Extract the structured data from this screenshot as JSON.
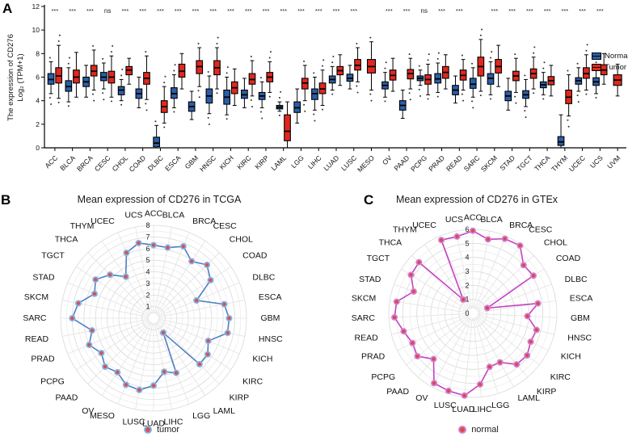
{
  "figure_labels": {
    "a": "A",
    "b": "B",
    "c": "C"
  },
  "panel_a": {
    "ylabel_line1": "The expression of CD276",
    "ylabel_line2": "Log₂ (TPM+1)",
    "legend_normal": "Normal",
    "legend_tumor": "Tumor"
  },
  "panel_b": {
    "title": "Mean expression of CD276 in TCGA",
    "legend": "tumor"
  },
  "panel_c": {
    "title": "Mean expression of CD276 in GTEx",
    "legend": "normal"
  },
  "chart_data": [
    {
      "type": "grouped_boxplot",
      "panel": "A",
      "title": "",
      "ylabel": "The expression of CD276 Log₂ (TPM+1)",
      "ylim": [
        0,
        12
      ],
      "y_ticks": [
        0,
        2,
        4,
        6,
        8,
        10,
        12
      ],
      "grid": false,
      "legend_position": "right",
      "colors": {
        "normal": "#2a5fa8",
        "tumor": "#e02820"
      },
      "categories": [
        "ACC",
        "BLCA",
        "BRCA",
        "CESC",
        "CHOL",
        "COAD",
        "DLBC",
        "ESCA",
        "GBM",
        "HNSC",
        "KICH",
        "KIRC",
        "KIRP",
        "LAML",
        "LGG",
        "LIHC",
        "LUAD",
        "LUSC",
        "MESO",
        "OV",
        "PAAD",
        "PCPG",
        "PRAD",
        "READ",
        "SARC",
        "SKCM",
        "STAD",
        "TGCT",
        "THCA",
        "THYM",
        "UCEC",
        "UCS",
        "UVM"
      ],
      "significance": [
        "***",
        "***",
        "***",
        "ns",
        "***",
        "***",
        "***",
        "***",
        "***",
        "***",
        "***",
        "***",
        "***",
        "***",
        "***",
        "***",
        "***",
        "***",
        "",
        "***",
        "***",
        "ns",
        "***",
        "***",
        "",
        "***",
        "***",
        "***",
        "***",
        "***",
        "***",
        "***",
        ""
      ],
      "series": [
        {
          "name": "Normal",
          "boxes": [
            [
              4.6,
              5.4,
              5.8,
              6.3,
              7.3
            ],
            [
              3.9,
              4.8,
              5.2,
              5.7,
              6.8
            ],
            [
              4.3,
              5.2,
              5.6,
              6.0,
              7.0
            ],
            [
              5.0,
              5.7,
              6.0,
              6.4,
              7.2
            ],
            [
              4.0,
              4.5,
              4.9,
              5.2,
              5.8
            ],
            [
              3.4,
              4.2,
              4.6,
              5.0,
              6.0
            ],
            [
              0.0,
              0.1,
              0.4,
              0.9,
              1.9
            ],
            [
              3.4,
              4.2,
              4.6,
              5.1,
              6.2
            ],
            [
              2.4,
              3.1,
              3.5,
              3.9,
              4.8
            ],
            [
              2.9,
              3.8,
              4.4,
              5.0,
              6.1
            ],
            [
              2.8,
              3.7,
              4.3,
              4.9,
              6.0
            ],
            [
              3.4,
              4.2,
              4.5,
              4.9,
              5.9
            ],
            [
              3.4,
              4.1,
              4.4,
              4.7,
              5.6
            ],
            [
              3.1,
              3.3,
              3.45,
              3.6,
              3.9
            ],
            [
              2.1,
              3.0,
              3.4,
              3.9,
              5.0
            ],
            [
              3.2,
              4.1,
              4.6,
              5.0,
              6.0
            ],
            [
              4.9,
              5.5,
              5.8,
              6.1,
              6.9
            ],
            [
              5.0,
              5.65,
              5.9,
              6.25,
              7.0
            ],
            null,
            [
              4.3,
              5.0,
              5.3,
              5.6,
              6.4
            ],
            [
              2.5,
              3.2,
              3.6,
              4.0,
              4.9
            ],
            [
              5.3,
              5.7,
              5.9,
              6.1,
              6.6
            ],
            [
              4.7,
              5.5,
              5.85,
              6.3,
              7.2
            ],
            [
              3.8,
              4.5,
              4.9,
              5.3,
              6.1
            ],
            [
              4.3,
              5.05,
              5.4,
              5.9,
              6.8
            ],
            [
              4.5,
              5.4,
              5.9,
              6.3,
              7.3
            ],
            [
              3.2,
              4.0,
              4.4,
              4.8,
              5.9
            ],
            [
              3.5,
              4.2,
              4.5,
              4.85,
              5.8
            ],
            [
              4.5,
              5.1,
              5.35,
              5.6,
              6.4
            ],
            [
              0.0,
              0.2,
              0.5,
              0.95,
              2.8
            ],
            [
              4.8,
              5.4,
              5.7,
              5.95,
              6.8
            ],
            [
              4.6,
              5.3,
              5.6,
              5.95,
              6.9
            ],
            null
          ]
        },
        {
          "name": "Tumor",
          "boxes": [
            [
              4.2,
              5.5,
              6.1,
              6.8,
              8.7
            ],
            [
              4.3,
              5.5,
              6.0,
              6.6,
              8.1
            ],
            [
              4.9,
              6.1,
              6.5,
              7.0,
              8.3
            ],
            [
              4.3,
              5.5,
              6.0,
              6.5,
              7.8
            ],
            [
              5.4,
              6.2,
              6.6,
              6.9,
              7.6
            ],
            [
              4.1,
              5.4,
              5.9,
              6.4,
              7.8
            ],
            [
              2.1,
              3.0,
              3.5,
              4.0,
              5.2
            ],
            [
              5.0,
              6.0,
              6.5,
              7.1,
              8.0
            ],
            [
              5.2,
              6.3,
              6.9,
              7.4,
              8.5
            ],
            [
              5.0,
              6.2,
              6.8,
              7.4,
              8.5
            ],
            [
              3.6,
              4.6,
              5.1,
              5.6,
              6.7
            ],
            [
              4.4,
              5.4,
              5.8,
              6.3,
              7.4
            ],
            [
              4.7,
              5.6,
              6.0,
              6.4,
              7.3
            ],
            [
              0.0,
              0.6,
              1.4,
              2.8,
              3.9
            ],
            [
              4.0,
              5.0,
              5.5,
              5.9,
              7.0
            ],
            [
              3.6,
              4.6,
              5.0,
              5.5,
              6.6
            ],
            [
              5.3,
              6.2,
              6.55,
              6.9,
              7.9
            ],
            [
              5.6,
              6.6,
              7.0,
              7.5,
              8.5
            ],
            [
              4.9,
              6.35,
              6.9,
              7.5,
              9.0
            ],
            [
              4.8,
              5.75,
              6.15,
              6.6,
              7.6
            ],
            [
              5.0,
              5.85,
              6.3,
              6.65,
              7.6
            ],
            [
              4.5,
              5.4,
              5.8,
              6.2,
              7.1
            ],
            [
              5.0,
              5.9,
              6.4,
              6.9,
              7.9
            ],
            [
              4.9,
              5.75,
              6.15,
              6.6,
              7.5
            ],
            [
              4.8,
              6.1,
              6.9,
              7.7,
              9.2
            ],
            [
              5.2,
              6.35,
              6.9,
              7.5,
              8.7
            ],
            [
              4.7,
              5.7,
              6.1,
              6.5,
              7.6
            ],
            [
              5.0,
              5.9,
              6.3,
              6.7,
              7.7
            ],
            [
              4.4,
              5.35,
              5.7,
              6.05,
              7.0
            ],
            [
              2.7,
              3.75,
              4.3,
              4.9,
              6.2
            ],
            [
              4.9,
              5.9,
              6.3,
              6.8,
              7.9
            ],
            [
              5.4,
              6.2,
              6.6,
              7.05,
              8.0
            ],
            [
              4.4,
              5.3,
              5.75,
              6.2,
              7.1
            ]
          ]
        }
      ]
    },
    {
      "type": "radar",
      "panel": "B",
      "title": "Mean expression of CD276 in TCGA",
      "legend": "tumor",
      "rlim": [
        0,
        8
      ],
      "ticks": [
        1,
        2,
        3,
        4,
        5,
        6,
        7,
        8
      ],
      "line_color": "#4d7fc4",
      "marker_ring": "#85b4e3",
      "marker_fill": "#d85050",
      "categories": [
        "ACC",
        "BLCA",
        "BRCA",
        "CESC",
        "CHOL",
        "COAD",
        "DLBC",
        "ESCA",
        "GBM",
        "HNSC",
        "KICH",
        "KIRC",
        "KIRP",
        "LAML",
        "LGG",
        "LIHC",
        "LUAD",
        "LUSC",
        "MESO",
        "OV",
        "PAAD",
        "PCPG",
        "PRAD",
        "READ",
        "SARC",
        "SKCM",
        "STAD",
        "TGCT",
        "THCA",
        "THYM",
        "UCEC",
        "UCS"
      ],
      "values": [
        6.3,
        6.2,
        6.7,
        5.9,
        6.5,
        5.9,
        4.0,
        6.2,
        6.5,
        6.5,
        5.1,
        5.6,
        5.6,
        1.5,
        5.1,
        4.7,
        5.8,
        6.3,
        6.2,
        5.6,
        5.9,
        5.4,
        6.0,
        5.4,
        7.0,
        6.6,
        5.5,
        6.0,
        5.3,
        4.3,
        6.1,
        6.6
      ]
    },
    {
      "type": "radar",
      "panel": "C",
      "title": "Mean expression of CD276 in GTEx",
      "legend": "normal",
      "rlim": [
        0,
        6
      ],
      "ticks": [
        0,
        1,
        2,
        3,
        4,
        5,
        6
      ],
      "line_color": "#c342c3",
      "marker_ring": "#d47fd4",
      "marker_fill": "#d84a4a",
      "categories": [
        "ACC",
        "BLCA",
        "BRCA",
        "CESC",
        "CHOL",
        "COAD",
        "DLBC",
        "ESCA",
        "GBM",
        "HNSC",
        "KICH",
        "KIRC",
        "KIRP",
        "LAML",
        "LGG",
        "LIHC",
        "LUAD",
        "LUSC",
        "OV",
        "PAAD",
        "PCPG",
        "PRAD",
        "READ",
        "SARC",
        "SKCM",
        "STAD",
        "TGCT",
        "THCA",
        "THYM",
        "UCEC",
        "UCS"
      ],
      "values": [
        5.9,
        5.4,
        5.8,
        5.9,
        5.0,
        5.1,
        1.1,
        4.7,
        3.9,
        4.7,
        4.6,
        4.9,
        4.8,
        4.0,
        4.0,
        5.1,
        5.9,
        5.8,
        5.7,
        4.3,
        5.0,
        4.8,
        5.1,
        5.6,
        5.5,
        4.5,
        5.2,
        5.3,
        1.2,
        5.7,
        5.6
      ]
    }
  ]
}
